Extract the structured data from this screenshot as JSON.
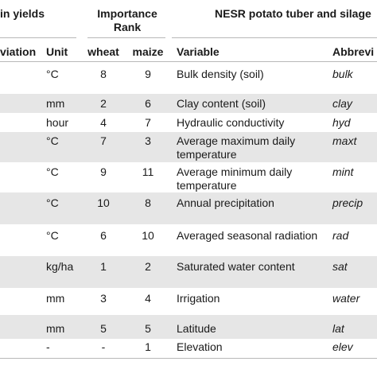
{
  "headers": {
    "group_left": "in yields",
    "group_rank": "Importance",
    "group_rank2": "Rank",
    "group_right": "NESR potato tuber and silage",
    "col_abbrev_left": "viation",
    "col_unit": "Unit",
    "col_wheat": "wheat",
    "col_maize": "maize",
    "col_variable": "Variable",
    "col_abbrev_right": "Abbrevi"
  },
  "rows": [
    {
      "unit": "°C",
      "wheat": "8",
      "maize": "9",
      "variable": "Bulk density (soil)",
      "variable2": "",
      "abbrev": "bulk"
    },
    {
      "unit": "mm",
      "wheat": "2",
      "maize": "6",
      "variable": "Clay content (soil)",
      "variable2": "",
      "abbrev": "clay"
    },
    {
      "unit": "hour",
      "wheat": "4",
      "maize": "7",
      "variable": "Hydraulic conductivity",
      "variable2": "",
      "abbrev": "hyd"
    },
    {
      "unit": "°C",
      "wheat": "7",
      "maize": "3",
      "variable": "Average maximum daily",
      "variable2": "temperature",
      "abbrev": "maxt"
    },
    {
      "unit": "°C",
      "wheat": "9",
      "maize": "11",
      "variable": "Average minimum daily",
      "variable2": "temperature",
      "abbrev": "mint"
    },
    {
      "unit": "°C",
      "wheat": "10",
      "maize": "8",
      "variable": "Annual precipitation",
      "variable2": "",
      "abbrev": "precip"
    },
    {
      "unit": "°C",
      "wheat": "6",
      "maize": "10",
      "variable": "Averaged seasonal radiation",
      "variable2": "",
      "abbrev": "rad"
    },
    {
      "unit": "kg/ha",
      "wheat": "1",
      "maize": "2",
      "variable": "Saturated water content",
      "variable2": "",
      "abbrev": "sat"
    },
    {
      "unit": "mm",
      "wheat": "3",
      "maize": "4",
      "variable": "Irrigation",
      "variable2": "",
      "abbrev": "water"
    },
    {
      "unit": "mm",
      "wheat": "5",
      "maize": "5",
      "variable": "Latitude",
      "variable2": "",
      "abbrev": "lat"
    },
    {
      "unit": "-",
      "wheat": "-",
      "maize": "1",
      "variable": "Elevation",
      "variable2": "",
      "abbrev": "elev"
    }
  ]
}
